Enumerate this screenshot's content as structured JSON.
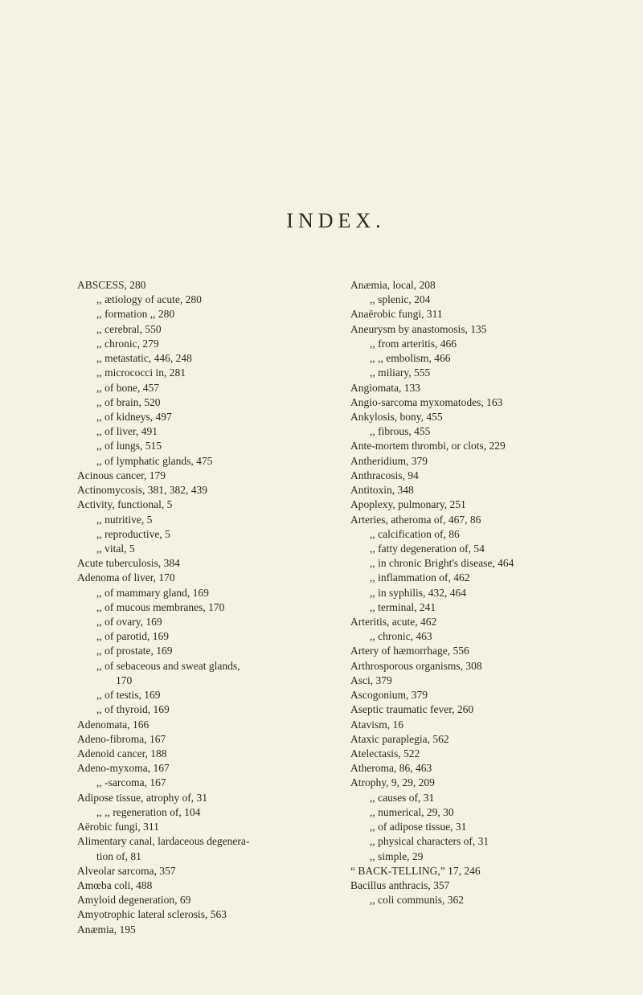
{
  "title": "INDEX.",
  "columns": {
    "left": [
      {
        "cls": "entry",
        "text": "ABSCESS, 280"
      },
      {
        "cls": "sub",
        "text": ",,   ætiology of acute, 280"
      },
      {
        "cls": "sub",
        "text": ",,   formation   ,,   280"
      },
      {
        "cls": "sub",
        "text": ",,   cerebral, 550"
      },
      {
        "cls": "sub",
        "text": ",,   chronic, 279"
      },
      {
        "cls": "sub",
        "text": ",,   metastatic, 446, 248"
      },
      {
        "cls": "sub",
        "text": ",,   micrococci in, 281"
      },
      {
        "cls": "sub",
        "text": ",,   of bone, 457"
      },
      {
        "cls": "sub",
        "text": ",,   of brain, 520"
      },
      {
        "cls": "sub",
        "text": ",,   of kidneys, 497"
      },
      {
        "cls": "sub",
        "text": ",,   of liver, 491"
      },
      {
        "cls": "sub",
        "text": ",,   of lungs, 515"
      },
      {
        "cls": "sub",
        "text": ",,   of lymphatic glands, 475"
      },
      {
        "cls": "entry",
        "text": "Acinous cancer, 179"
      },
      {
        "cls": "entry",
        "text": "Actinomycosis, 381, 382, 439"
      },
      {
        "cls": "entry",
        "text": "Activity, functional, 5"
      },
      {
        "cls": "sub",
        "text": ",,   nutritive, 5"
      },
      {
        "cls": "sub",
        "text": ",,   reproductive, 5"
      },
      {
        "cls": "sub",
        "text": ",,   vital, 5"
      },
      {
        "cls": "entry",
        "text": "Acute tuberculosis, 384"
      },
      {
        "cls": "entry",
        "text": "Adenoma of liver, 170"
      },
      {
        "cls": "sub",
        "text": ",,   of mammary gland, 169"
      },
      {
        "cls": "sub",
        "text": ",,   of mucous membranes, 170"
      },
      {
        "cls": "sub",
        "text": ",,   of ovary, 169"
      },
      {
        "cls": "sub",
        "text": ",,   of parotid, 169"
      },
      {
        "cls": "sub",
        "text": ",,   of prostate, 169"
      },
      {
        "cls": "sub",
        "text": ",,   of sebaceous and sweat glands,"
      },
      {
        "cls": "sub2",
        "text": "170"
      },
      {
        "cls": "sub",
        "text": ",,   of testis, 169"
      },
      {
        "cls": "sub",
        "text": ",,   of thyroid, 169"
      },
      {
        "cls": "entry",
        "text": "Adenomata, 166"
      },
      {
        "cls": "entry",
        "text": "Adeno-fibroma, 167"
      },
      {
        "cls": "entry",
        "text": "Adenoid cancer, 188"
      },
      {
        "cls": "entry",
        "text": "Adeno-myxoma, 167"
      },
      {
        "cls": "sub",
        "text": ",,   -sarcoma, 167"
      },
      {
        "cls": "entry",
        "text": "Adipose tissue, atrophy of, 31"
      },
      {
        "cls": "sub",
        "text": ",,   ,,   regeneration of, 104"
      },
      {
        "cls": "entry",
        "text": "Aërobic fungi, 311"
      },
      {
        "cls": "entry",
        "text": "Alimentary canal, lardaceous degenera-"
      },
      {
        "cls": "sub",
        "text": "tion of, 81"
      },
      {
        "cls": "entry",
        "text": "Alveolar sarcoma, 357"
      },
      {
        "cls": "entry",
        "text": "Amœba coli, 488"
      },
      {
        "cls": "entry",
        "text": "Amyloid degeneration, 69"
      },
      {
        "cls": "entry",
        "text": "Amyotrophic lateral sclerosis, 563"
      },
      {
        "cls": "entry",
        "text": "Anæmia, 195"
      }
    ],
    "right": [
      {
        "cls": "entry",
        "text": "Anæmia, local, 208"
      },
      {
        "cls": "sub",
        "text": ",,   splenic, 204"
      },
      {
        "cls": "entry",
        "text": "Anaërobic fungi, 311"
      },
      {
        "cls": "entry",
        "text": "Aneurysm by anastomosis, 135"
      },
      {
        "cls": "sub",
        "text": ",,   from arteritis, 466"
      },
      {
        "cls": "sub",
        "text": ",,   ,,   embolism, 466"
      },
      {
        "cls": "sub",
        "text": ",,   miliary, 555"
      },
      {
        "cls": "entry",
        "text": "Angiomata, 133"
      },
      {
        "cls": "entry",
        "text": "Angio-sarcoma myxomatodes, 163"
      },
      {
        "cls": "entry",
        "text": "Ankylosis, bony, 455"
      },
      {
        "cls": "sub",
        "text": ",,   fibrous, 455"
      },
      {
        "cls": "entry",
        "text": "Ante-mortem thrombi, or clots, 229"
      },
      {
        "cls": "entry",
        "text": "Antheridium, 379"
      },
      {
        "cls": "entry",
        "text": "Anthracosis, 94"
      },
      {
        "cls": "entry",
        "text": "Antitoxin, 348"
      },
      {
        "cls": "entry",
        "text": "Apoplexy, pulmonary, 251"
      },
      {
        "cls": "entry",
        "text": "Arteries, atheroma of, 467, 86"
      },
      {
        "cls": "sub",
        "text": ",,   calcification of, 86"
      },
      {
        "cls": "sub",
        "text": ",,   fatty degeneration of, 54"
      },
      {
        "cls": "sub",
        "text": ",,   in chronic Bright's disease, 464"
      },
      {
        "cls": "sub",
        "text": ",,   inflammation of, 462"
      },
      {
        "cls": "sub",
        "text": ",,   in syphilis, 432, 464"
      },
      {
        "cls": "sub",
        "text": ",,   terminal, 241"
      },
      {
        "cls": "entry",
        "text": "Arteritis, acute, 462"
      },
      {
        "cls": "sub",
        "text": ",,   chronic, 463"
      },
      {
        "cls": "entry",
        "text": "Artery of hæmorrhage, 556"
      },
      {
        "cls": "entry",
        "text": "Arthrosporous organisms, 308"
      },
      {
        "cls": "entry",
        "text": "Asci, 379"
      },
      {
        "cls": "entry",
        "text": "Ascogonium, 379"
      },
      {
        "cls": "entry",
        "text": "Aseptic traumatic fever, 260"
      },
      {
        "cls": "entry",
        "text": "Atavism, 16"
      },
      {
        "cls": "entry",
        "text": "Ataxic paraplegia, 562"
      },
      {
        "cls": "entry",
        "text": "Atelectasis, 522"
      },
      {
        "cls": "entry",
        "text": "Atheroma, 86, 463"
      },
      {
        "cls": "entry",
        "text": "Atrophy, 9, 29, 209"
      },
      {
        "cls": "sub",
        "text": ",,   causes of, 31"
      },
      {
        "cls": "sub",
        "text": ",,   numerical, 29, 30"
      },
      {
        "cls": "sub",
        "text": ",,   of adipose tissue, 31"
      },
      {
        "cls": "sub",
        "text": ",,   physical characters of, 31"
      },
      {
        "cls": "sub",
        "text": ",,   simple, 29"
      },
      {
        "cls": "entry",
        "text": " "
      },
      {
        "cls": "entry",
        "text": " "
      },
      {
        "cls": "entry",
        "text": "“ BACK-TELLING,” 17, 246"
      },
      {
        "cls": "entry",
        "text": "Bacillus anthracis, 357"
      },
      {
        "cls": "sub",
        "text": ",,   coli communis, 362"
      }
    ]
  }
}
